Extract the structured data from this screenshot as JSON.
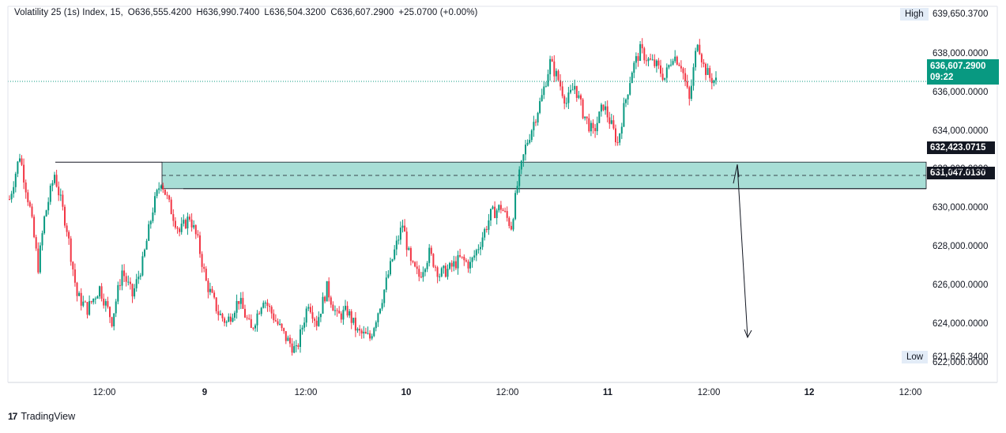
{
  "legend": {
    "symbol": "Volatility 25 (1s) Index, 15,",
    "open": "O636,555.4200",
    "high": "H636,990.7400",
    "low": "L636,504.3200",
    "close": "C636,607.2900",
    "change": "+25.0700 (+0.00%)"
  },
  "price_axis": {
    "high_tag": "High",
    "high_value": "639,650.3700",
    "low_tag": "Low",
    "low_value": "621,626.3400",
    "current_price": "636,607.2900",
    "countdown": "09:22",
    "zone_top_label": "632,423.0715",
    "zone_bottom_label": "631,047.0130",
    "ticks": [
      "638,000.0000",
      "636,000.0000",
      "634,000.0000",
      "632,000.0000",
      "630,000.0000",
      "628,000.0000",
      "626,000.0000",
      "624,000.0000",
      "622,000.0000"
    ]
  },
  "time_axis": {
    "ticks": [
      "12:00",
      "9",
      "12:00",
      "10",
      "12:00",
      "11",
      "12:00",
      "12",
      "12:00"
    ]
  },
  "branding": {
    "name": "TradingView"
  },
  "colors": {
    "up": "#089981",
    "down": "#f23645",
    "zone": "#a8ded6",
    "text": "#131722"
  },
  "chart_data": {
    "type": "candlestick",
    "title": "Volatility 25 (1s) Index, 15",
    "y_range": [
      621000,
      640500
    ],
    "current_price": 636607.29,
    "session_high": 639650.37,
    "session_low": 621626.34,
    "zone": {
      "top": 632423.0715,
      "bottom": 631047.013
    },
    "levels": [
      632423.0715,
      631047.013
    ],
    "path_close_approx": [
      [
        0,
        630500
      ],
      [
        5,
        632800
      ],
      [
        10,
        630000
      ],
      [
        14,
        627000
      ],
      [
        17,
        629500
      ],
      [
        22,
        631800
      ],
      [
        28,
        629000
      ],
      [
        33,
        625500
      ],
      [
        38,
        624800
      ],
      [
        44,
        625900
      ],
      [
        50,
        624200
      ],
      [
        55,
        626800
      ],
      [
        60,
        625500
      ],
      [
        65,
        627200
      ],
      [
        70,
        630000
      ],
      [
        74,
        631500
      ],
      [
        78,
        630200
      ],
      [
        83,
        628800
      ],
      [
        88,
        629600
      ],
      [
        92,
        628300
      ],
      [
        96,
        626200
      ],
      [
        102,
        624600
      ],
      [
        106,
        624100
      ],
      [
        112,
        625300
      ],
      [
        118,
        623700
      ],
      [
        124,
        625400
      ],
      [
        130,
        624200
      ],
      [
        135,
        623300
      ],
      [
        140,
        622600
      ],
      [
        146,
        625200
      ],
      [
        150,
        624100
      ],
      [
        155,
        625900
      ],
      [
        160,
        624400
      ],
      [
        165,
        624700
      ],
      [
        170,
        623600
      ],
      [
        176,
        623300
      ],
      [
        182,
        625400
      ],
      [
        188,
        627800
      ],
      [
        192,
        629200
      ],
      [
        196,
        627100
      ],
      [
        200,
        626500
      ],
      [
        205,
        627700
      ],
      [
        210,
        626600
      ],
      [
        215,
        626900
      ],
      [
        220,
        627400
      ],
      [
        225,
        627100
      ],
      [
        230,
        628300
      ],
      [
        235,
        629700
      ],
      [
        240,
        630100
      ],
      [
        245,
        629100
      ],
      [
        248,
        631200
      ],
      [
        252,
        633200
      ],
      [
        256,
        634500
      ],
      [
        260,
        635800
      ],
      [
        264,
        637600
      ],
      [
        268,
        636700
      ],
      [
        272,
        635500
      ],
      [
        276,
        636400
      ],
      [
        280,
        635000
      ],
      [
        285,
        633900
      ],
      [
        290,
        635400
      ],
      [
        294,
        634300
      ],
      [
        297,
        633400
      ],
      [
        300,
        635200
      ],
      [
        304,
        637200
      ],
      [
        308,
        638200
      ],
      [
        312,
        637700
      ],
      [
        316,
        637400
      ],
      [
        320,
        636800
      ],
      [
        324,
        638000
      ],
      [
        328,
        637500
      ],
      [
        332,
        635600
      ],
      [
        336,
        638800
      ],
      [
        339,
        637400
      ],
      [
        342,
        636800
      ],
      [
        345,
        636607
      ]
    ]
  }
}
